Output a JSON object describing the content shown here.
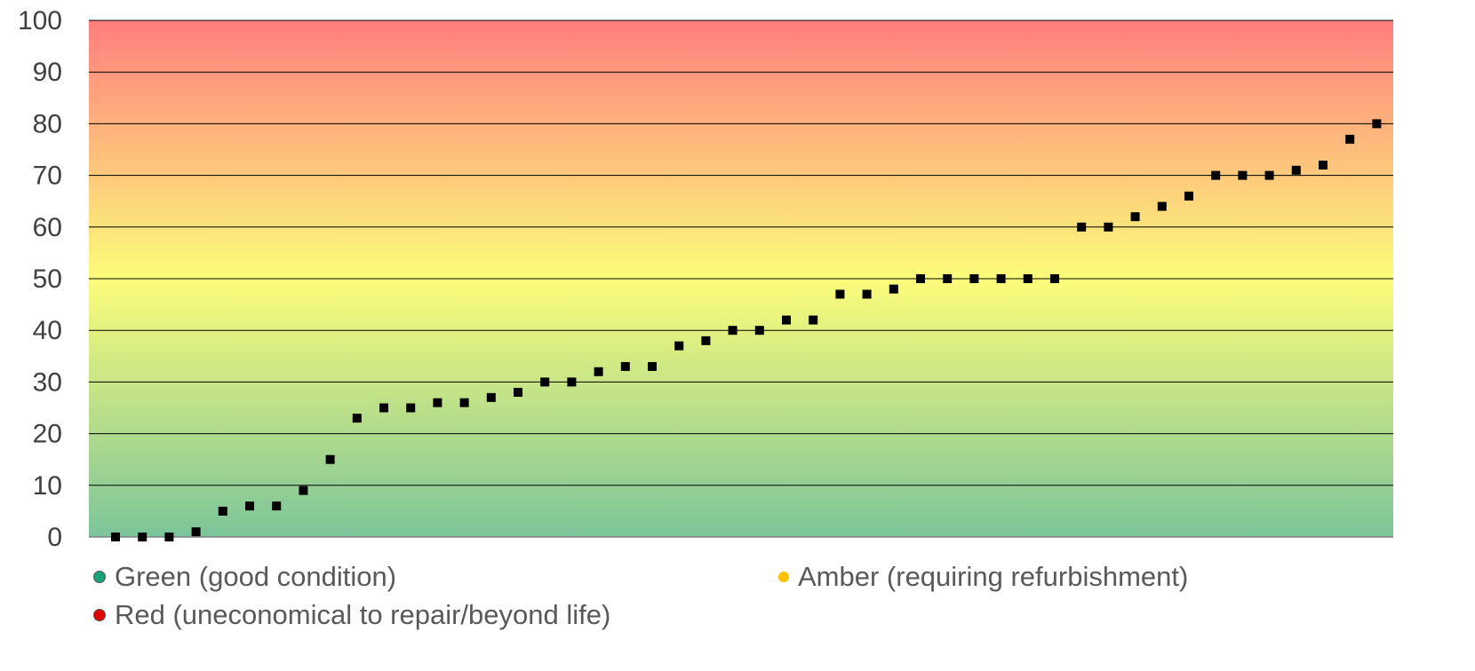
{
  "chart_data": {
    "type": "scatter",
    "title": "",
    "xlabel": "",
    "ylabel": "",
    "ylim": [
      0,
      100
    ],
    "yticks": [
      0,
      10,
      20,
      30,
      40,
      50,
      60,
      70,
      80,
      90,
      100
    ],
    "grid": true,
    "background": "vertical gradient green (low) to yellow (mid) to red (high)",
    "marker": "square",
    "marker_color": "#000000",
    "series": [
      {
        "values": [
          0,
          0,
          0,
          1,
          5,
          6,
          6,
          9,
          15,
          23,
          25,
          25,
          26,
          26,
          27,
          28,
          30,
          30,
          32,
          33,
          33,
          37,
          38,
          40,
          40,
          42,
          42,
          47,
          47,
          48,
          50,
          50,
          50,
          50,
          50,
          50,
          60,
          60,
          62,
          64,
          66,
          70,
          70,
          70,
          71,
          72,
          77,
          80
        ]
      }
    ],
    "legend": {
      "placement": "bottom",
      "entries": [
        {
          "label": "Green (good condition)",
          "color": "#1aa37a"
        },
        {
          "label": "Amber (requiring refurbishment)",
          "color": "#ffc000"
        },
        {
          "label": "Red (uneconomical to repair/beyond life)",
          "color": "#e00000"
        }
      ]
    },
    "colors": {
      "green_band": "#7cc49a",
      "yellow_band": "#fcfc7a",
      "red_band": "#ff7e7e"
    }
  }
}
